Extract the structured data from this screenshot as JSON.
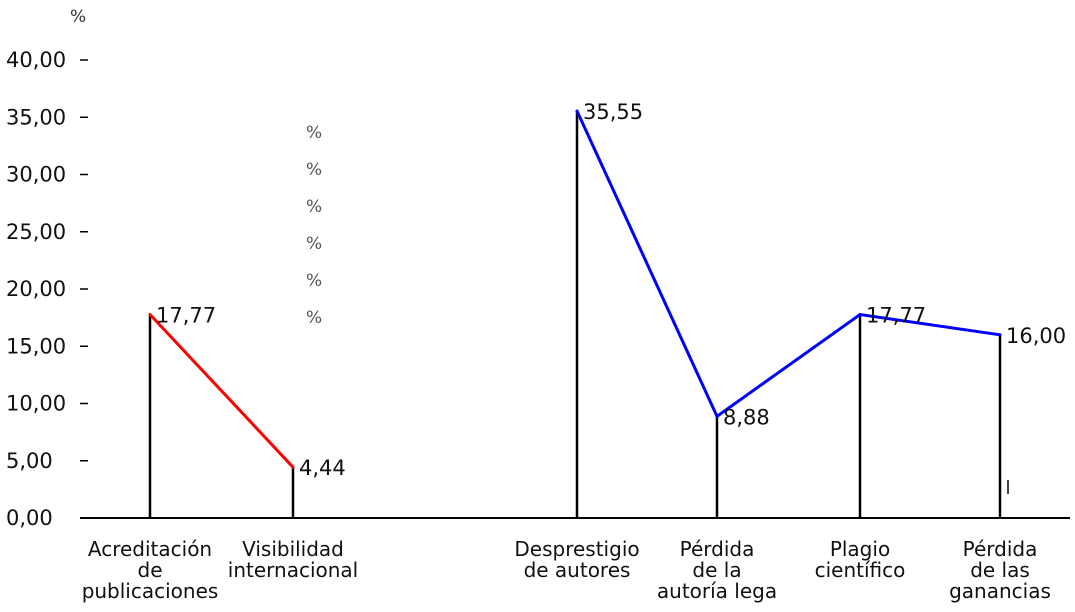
{
  "chart_data": {
    "type": "line",
    "y_unit": "%",
    "ylim": [
      0,
      40
    ],
    "yticks": [
      "0,00",
      "5,00",
      "10,00",
      "15,00",
      "20,00",
      "25,00",
      "30,00",
      "35,00",
      "40,00"
    ],
    "percent_marks": [
      "%",
      "%",
      "%",
      "%",
      "%",
      "%"
    ],
    "categories": [
      [
        "Acreditación",
        "de",
        "publicaciones"
      ],
      [
        "Visibilidad",
        "internacional"
      ],
      [
        "Desprestigio",
        "de autores"
      ],
      [
        "Pérdida",
        "de la",
        "autoría lega"
      ],
      [
        "Plagio",
        "científico"
      ],
      [
        "Pérdida",
        "de las",
        "ganancias"
      ]
    ],
    "series": [
      {
        "color": "#ff0000",
        "points": [
          {
            "category_index": 0,
            "value": 17.77,
            "label": "17,77"
          },
          {
            "category_index": 1,
            "value": 4.44,
            "label": "4,44"
          }
        ]
      },
      {
        "color": "#0000ff",
        "points": [
          {
            "category_index": 2,
            "value": 35.55,
            "label": "35,55"
          },
          {
            "category_index": 3,
            "value": 8.88,
            "label": "8,88"
          },
          {
            "category_index": 4,
            "value": 17.77,
            "label": "17,77"
          },
          {
            "category_index": 5,
            "value": 16.0,
            "label": "16,00"
          }
        ]
      }
    ],
    "grid": false,
    "legend": "none"
  }
}
